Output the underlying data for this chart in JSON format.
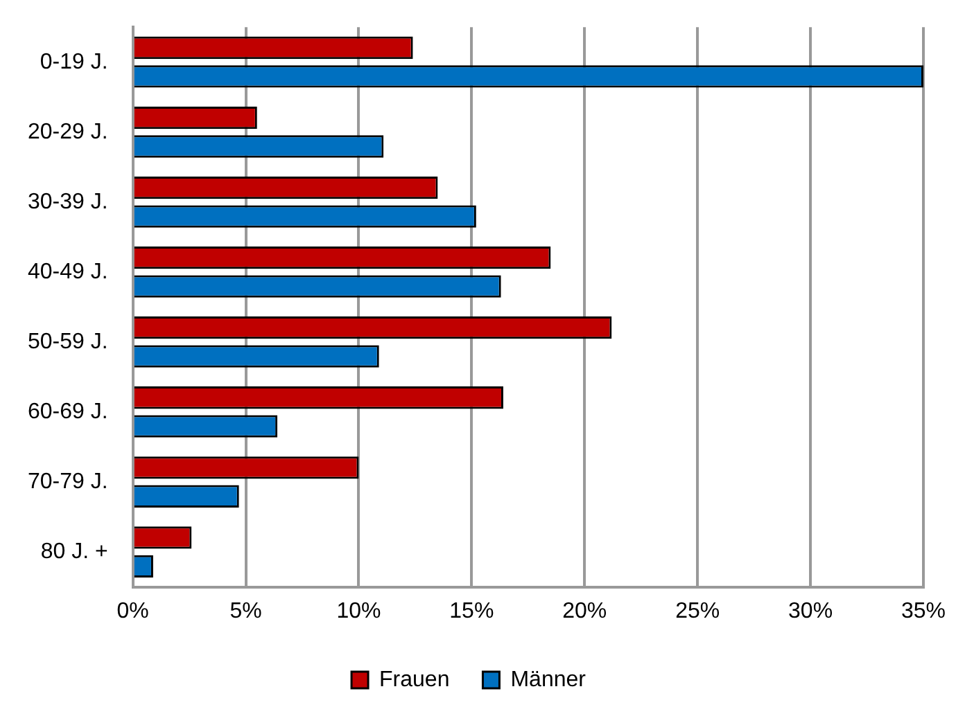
{
  "chart_data": {
    "type": "bar",
    "orientation": "horizontal",
    "categories": [
      "0-19 J.",
      "20-29 J.",
      "30-39 J.",
      "40-49 J.",
      "50-59 J.",
      "60-69 J.",
      "70-79 J.",
      "80 J. +"
    ],
    "series": [
      {
        "name": "Frauen",
        "color": "#c00000",
        "values": [
          12.4,
          5.5,
          13.5,
          18.5,
          21.2,
          16.4,
          10.0,
          2.6
        ]
      },
      {
        "name": "Männer",
        "color": "#0070c0",
        "values": [
          35,
          11.1,
          15.2,
          16.3,
          10.9,
          6.4,
          4.7,
          0.9
        ]
      }
    ],
    "xlim": [
      0,
      35
    ],
    "xticks": [
      {
        "value": 0,
        "label": "0%"
      },
      {
        "value": 5,
        "label": "5%"
      },
      {
        "value": 10,
        "label": "10%"
      },
      {
        "value": 15,
        "label": "15%"
      },
      {
        "value": 20,
        "label": "20%"
      },
      {
        "value": 25,
        "label": "25%"
      },
      {
        "value": 30,
        "label": "30%"
      },
      {
        "value": 35,
        "label": "35%"
      }
    ],
    "grid": "x",
    "legend": "bottom"
  }
}
